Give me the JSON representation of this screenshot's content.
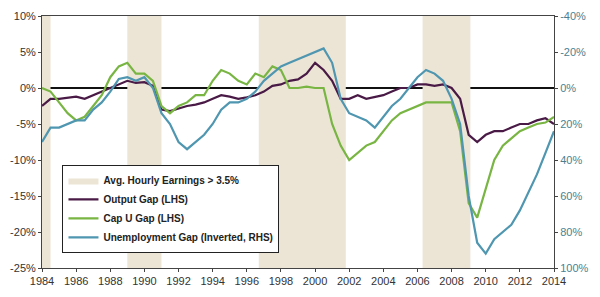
{
  "chart_data": {
    "type": "line",
    "x": [
      1984,
      1984.5,
      1985,
      1985.5,
      1986,
      1986.5,
      1987,
      1987.5,
      1988,
      1988.5,
      1989,
      1989.5,
      1990,
      1990.5,
      1991,
      1991.5,
      1992,
      1992.5,
      1993,
      1993.5,
      1994,
      1994.5,
      1995,
      1995.5,
      1996,
      1996.5,
      1997,
      1997.5,
      1998,
      1998.5,
      1999,
      1999.5,
      2000,
      2000.5,
      2001,
      2001.5,
      2002,
      2002.5,
      2003,
      2003.5,
      2004,
      2004.5,
      2005,
      2005.5,
      2006,
      2006.5,
      2007,
      2007.5,
      2008,
      2008.5,
      2009,
      2009.5,
      2010,
      2010.5,
      2011,
      2011.5,
      2012,
      2012.5,
      2013,
      2013.5,
      2014
    ],
    "xlim": [
      1984,
      2014
    ],
    "xticks": [
      1984,
      1986,
      1988,
      1990,
      1992,
      1994,
      1996,
      1998,
      2000,
      2002,
      2004,
      2006,
      2008,
      2010,
      2012,
      2014
    ],
    "ylim": [
      -25,
      10
    ],
    "yticks": [
      {
        "value": -25,
        "label": "-25%"
      },
      {
        "value": -20,
        "label": "-20%"
      },
      {
        "value": -15,
        "label": "-15%"
      },
      {
        "value": -10,
        "label": "-10%"
      },
      {
        "value": -5,
        "label": "-5%"
      },
      {
        "value": 0,
        "label": "0%"
      },
      {
        "value": 5,
        "label": "5%"
      },
      {
        "value": 10,
        "label": "10%"
      }
    ],
    "y2lim": [
      100,
      -40
    ],
    "y2ticks": [
      {
        "value": -40,
        "label": "-40%"
      },
      {
        "value": -20,
        "label": "-20%"
      },
      {
        "value": 0,
        "label": "0%"
      },
      {
        "value": 20,
        "label": "20%"
      },
      {
        "value": 40,
        "label": "40%"
      },
      {
        "value": 60,
        "label": "60%"
      },
      {
        "value": 80,
        "label": "80%"
      },
      {
        "value": 100,
        "label": "100%"
      }
    ],
    "grid": false,
    "legend": "lower left",
    "bands": {
      "name": "Avg. Hourly Earnings > 3.5%",
      "color": "#ece5d6",
      "periods": [
        [
          1984,
          1984.5
        ],
        [
          1989,
          1991
        ],
        [
          1996.7,
          2001.8
        ],
        [
          2006.3,
          2009.1
        ]
      ]
    },
    "series": [
      {
        "name": "Output Gap (LHS)",
        "color": "#4a1a46",
        "values": [
          -2.5,
          -1.5,
          -1.5,
          -1.3,
          -1.2,
          -1.5,
          -1.0,
          -0.5,
          0,
          0.5,
          1.0,
          0.7,
          0.8,
          0.3,
          -3.0,
          -3.2,
          -2.8,
          -2.5,
          -2.3,
          -2.0,
          -1.5,
          -1.0,
          -1.2,
          -1.5,
          -1.3,
          -1.0,
          -0.5,
          0.3,
          0.5,
          1.0,
          1.2,
          2.0,
          3.5,
          2.5,
          1.0,
          -1.5,
          -1.5,
          -1.0,
          -1.5,
          -1.2,
          -1.0,
          -0.5,
          0,
          0,
          0.5,
          0.5,
          0.3,
          0.5,
          0,
          -1.5,
          -6.5,
          -7.5,
          -6.5,
          -6,
          -6,
          -5.5,
          -5,
          -5,
          -4.5,
          -4.2,
          -5.0
        ]
      },
      {
        "name": "Cap U Gap (LHS)",
        "color": "#78b543",
        "values": [
          0,
          -0.5,
          -2,
          -3.5,
          -4.5,
          -4,
          -2.5,
          -1,
          1.5,
          3,
          3.5,
          2,
          2,
          1,
          -2.5,
          -3.5,
          -2.5,
          -2,
          -1,
          -1,
          1,
          2.5,
          2,
          1,
          0.5,
          2,
          1.5,
          3,
          2.5,
          0,
          0,
          0.2,
          0,
          0,
          -5,
          -8,
          -10,
          -9,
          -8,
          -7.5,
          -6,
          -4.5,
          -3.5,
          -3,
          -2.5,
          -2,
          -2,
          -2,
          -2,
          -6,
          -16,
          -18,
          -14,
          -10,
          -8,
          -7,
          -6,
          -5.5,
          -5,
          -4.8,
          -4
        ]
      },
      {
        "name": "Unemployment Gap (Inverted, RHS)",
        "color": "#4f96b0",
        "axis": "y2",
        "values": [
          30,
          22,
          22,
          20,
          18,
          18,
          12,
          8,
          2,
          -5,
          -6,
          -4,
          -6,
          0,
          14,
          20,
          30,
          34,
          30,
          26,
          20,
          12,
          8,
          8,
          6,
          2,
          -4,
          -8,
          -12,
          -14,
          -16,
          -18,
          -20,
          -22,
          -14,
          6,
          14,
          16,
          18,
          22,
          16,
          10,
          6,
          0,
          -6,
          -10,
          -8,
          -4,
          6,
          20,
          60,
          86,
          92,
          84,
          80,
          76,
          68,
          58,
          48,
          36,
          24
        ]
      }
    ]
  }
}
